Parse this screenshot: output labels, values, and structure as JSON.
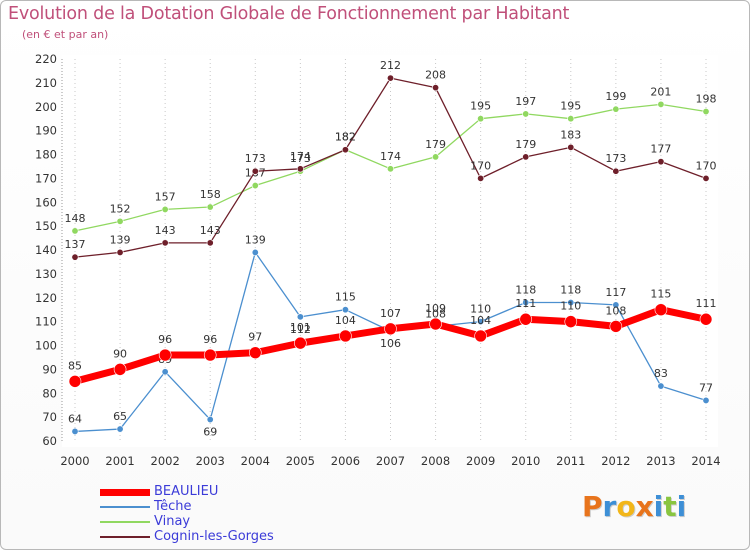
{
  "header": {
    "title": "Evolution de la Dotation Globale de Fonctionnement par Habitant",
    "subtitle": "(en € et par an)"
  },
  "colors": {
    "title": "#c0507a",
    "axis_text": "#333333",
    "grid": "#c8c8c8",
    "legend_text": "#3b3bd8"
  },
  "chart_data": {
    "type": "line",
    "title": "Evolution de la Dotation Globale de Fonctionnement par Habitant",
    "subtitle": "(en € et par an)",
    "xlabel": "",
    "ylabel": "",
    "x": [
      "2000",
      "2001",
      "2002",
      "2003",
      "2004",
      "2005",
      "2006",
      "2007",
      "2008",
      "2009",
      "2010",
      "2011",
      "2012",
      "2013",
      "2014"
    ],
    "ylim": [
      60,
      220
    ],
    "yticks": [
      60,
      70,
      80,
      90,
      100,
      110,
      120,
      130,
      140,
      150,
      160,
      170,
      180,
      190,
      200,
      210,
      220
    ],
    "grid": "vertical dotted",
    "legend_position": "bottom-left",
    "series": [
      {
        "name": "Vinay",
        "color": "#90d860",
        "values": [
          148,
          152,
          157,
          158,
          167,
          173,
          182,
          174,
          179,
          195,
          197,
          195,
          199,
          201,
          198
        ]
      },
      {
        "name": "Cognin-les-Gorges",
        "color": "#6e1f2a",
        "values": [
          137,
          139,
          143,
          143,
          173,
          174,
          182,
          212,
          208,
          170,
          179,
          183,
          173,
          177,
          170
        ]
      },
      {
        "name": "Têche",
        "color": "#4b8fcf",
        "values": [
          64,
          65,
          89,
          69,
          139,
          112,
          115,
          106,
          108,
          110,
          118,
          118,
          117,
          83,
          77
        ]
      },
      {
        "name": "BEAULIEU",
        "color": "#ff0000",
        "values": [
          85,
          90,
          96,
          96,
          97,
          101,
          104,
          107,
          109,
          104,
          111,
          110,
          108,
          115,
          111
        ]
      }
    ],
    "legend_order": [
      "BEAULIEU",
      "Têche",
      "Vinay",
      "Cognin-les-Gorges"
    ]
  },
  "branding": {
    "logo_letters": [
      {
        "ch": "P",
        "color": "#e8741c"
      },
      {
        "ch": "r",
        "color": "#3d8fd6"
      },
      {
        "ch": "o",
        "color": "#f2b619"
      },
      {
        "ch": "x",
        "color": "#e8741c"
      },
      {
        "ch": "i",
        "color": "#3d8fd6"
      },
      {
        "ch": "t",
        "color": "#89c540"
      },
      {
        "ch": "i",
        "color": "#3d8fd6"
      }
    ]
  }
}
